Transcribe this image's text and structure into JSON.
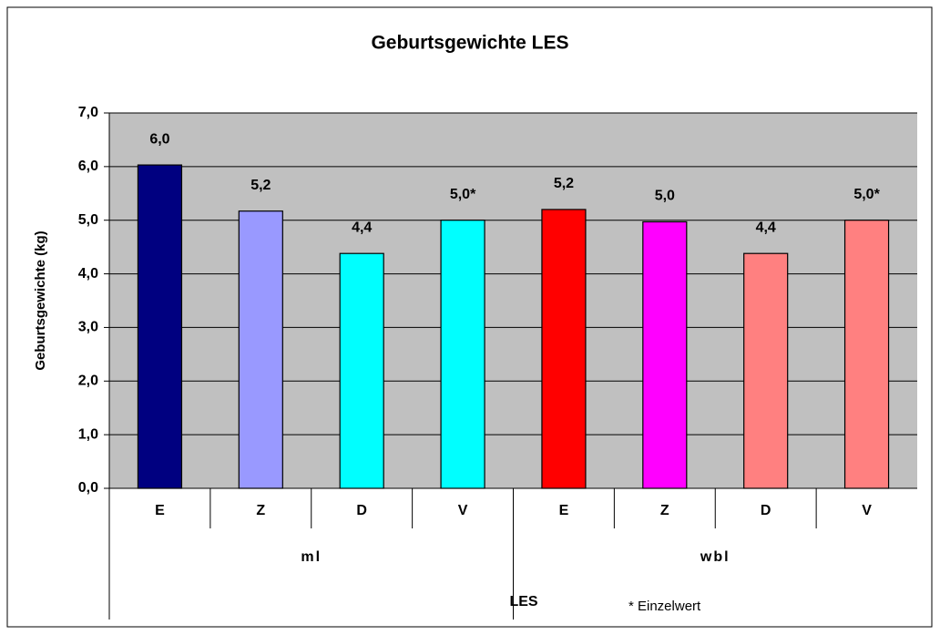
{
  "chart_data": {
    "type": "bar",
    "title": "Geburtsgewichte LES",
    "y_label": "Geburtsgewichte (kg)",
    "x_label": "LES",
    "note": "* Einzelwert",
    "categories": [
      "E",
      "Z",
      "D",
      "V",
      "E",
      "Z",
      "D",
      "V"
    ],
    "groups": [
      "ml",
      "wbl"
    ],
    "values": [
      6.03,
      5.17,
      4.38,
      5.0,
      5.2,
      4.97,
      4.38,
      5.0
    ],
    "value_labels": [
      "6,0",
      "5,2",
      "4,4",
      "5,0*",
      "5,2",
      "5,0",
      "4,4",
      "5,0*"
    ],
    "colors": [
      "#000080",
      "#9999ff",
      "#00ffff",
      "#00ffff",
      "#ff0000",
      "#ff00ff",
      "#ff8080",
      "#ff8080"
    ],
    "ylim": [
      0,
      7
    ],
    "yticks": [
      {
        "value": 0,
        "label": "0,0"
      },
      {
        "value": 1,
        "label": "1,0"
      },
      {
        "value": 2,
        "label": "2,0"
      },
      {
        "value": 3,
        "label": "3,0"
      },
      {
        "value": 4,
        "label": "4,0"
      },
      {
        "value": 5,
        "label": "5,0"
      },
      {
        "value": 6,
        "label": "6,0"
      },
      {
        "value": 7,
        "label": "7,0"
      }
    ],
    "grid": true,
    "plot_background": "#c0c0c0"
  }
}
